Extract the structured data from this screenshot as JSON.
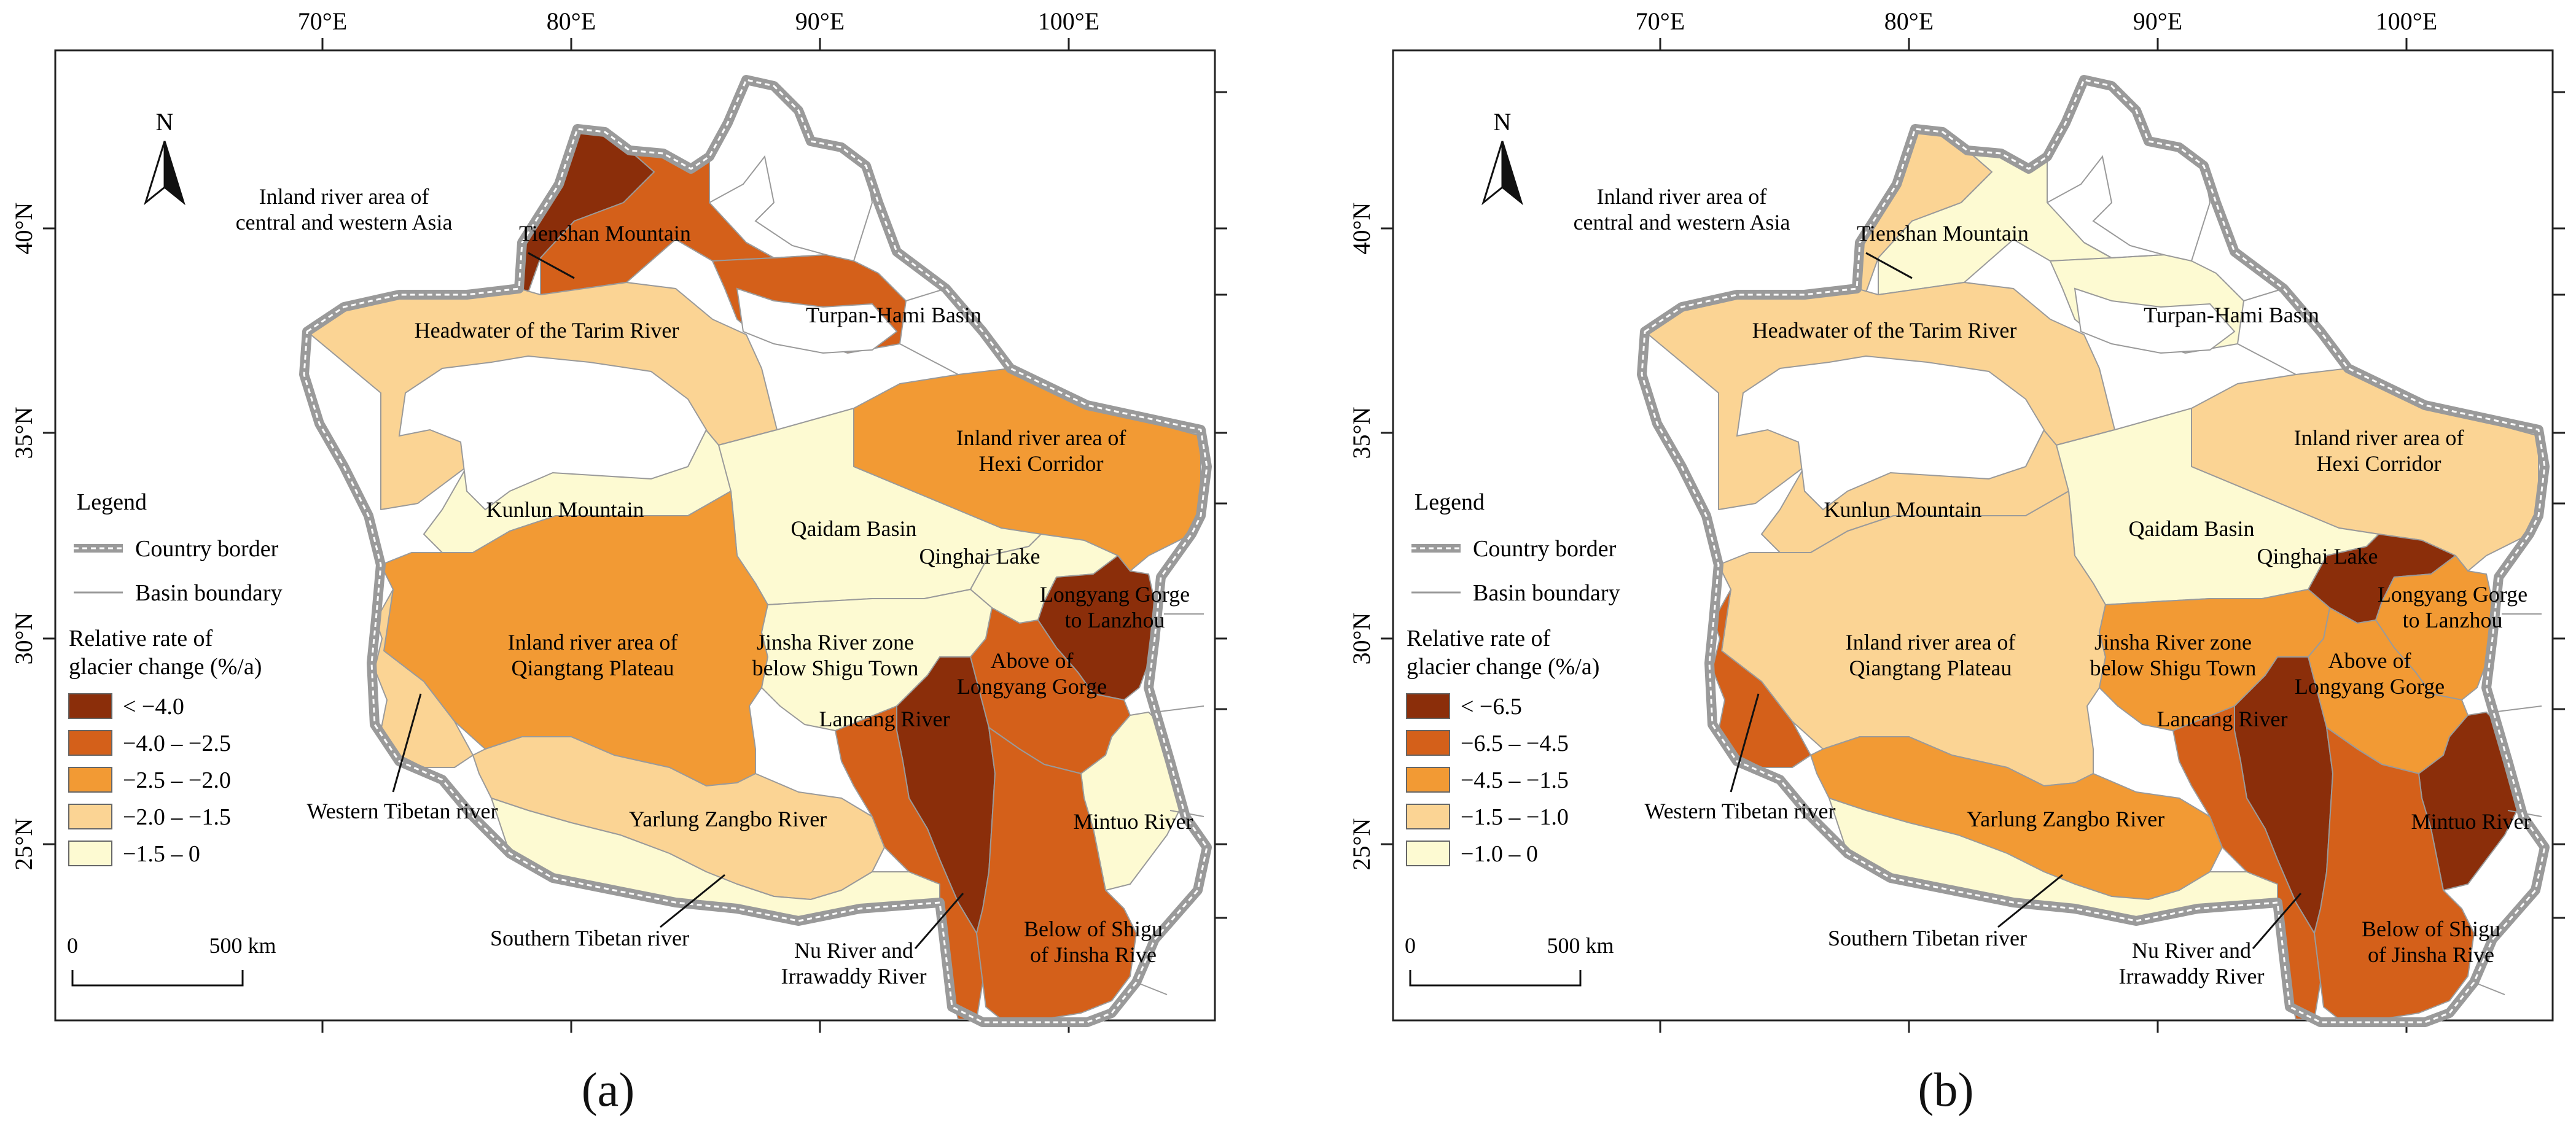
{
  "axes": {
    "lon_ticks": [
      "70°E",
      "80°E",
      "90°E",
      "100°E"
    ],
    "lat_ticks": [
      "40°N",
      "35°N",
      "30°N",
      "25°N"
    ]
  },
  "north_arrow": "N",
  "scale_bar": {
    "start": "0",
    "end": "500 km"
  },
  "region_labels": {
    "inland_asia": [
      "Inland river area of",
      "central and western Asia"
    ],
    "tienshan": "Tienshan Mountain",
    "turpan": "Turpan-Hami Basin",
    "tarim": "Headwater of the Tarim River",
    "hexi": [
      "Inland river area of",
      "Hexi Corridor"
    ],
    "kunlun": "Kunlun Mountain",
    "qaidam": "Qaidam Basin",
    "qinghai": "Qinghai Lake",
    "longyang_lanzhou": [
      "Longyang Gorge",
      "to Lanzhou"
    ],
    "qiangtang": [
      "Inland river area of",
      "Qiangtang Plateau"
    ],
    "jinsha_below": [
      "Jinsha River zone",
      "below Shigu Town"
    ],
    "above_longyang": [
      "Above of",
      "Longyang Gorge"
    ],
    "lancang": "Lancang River",
    "western_tibetan": "Western Tibetan river",
    "yarlung": "Yarlung Zangbo River",
    "mintuo": "Mintuo River",
    "southern_tibetan": "Southern Tibetan river",
    "nu": [
      "Nu River and",
      "Irrawaddy River"
    ],
    "shigu": [
      "Below of Shigu",
      "of Jinsha Rive"
    ]
  },
  "legend": {
    "title": "Legend",
    "country_border": "Country border",
    "basin_boundary": "Basin boundary",
    "rate_title": [
      "Relative rate of",
      "glacier change (%/a)"
    ]
  },
  "palette": [
    "#8b2e0a",
    "#d4601a",
    "#f29a34",
    "#fbd494",
    "#fdfad2"
  ],
  "palette_names": [
    "dark-brown",
    "dark-orange",
    "orange",
    "light-orange",
    "pale-yellow"
  ],
  "panels": [
    {
      "label": "(a)",
      "classes": [
        "< −4.0",
        "−4.0 – −2.5",
        "−2.5 – −2.0",
        "−2.0 – −1.5",
        "−1.5 – 0"
      ],
      "region_class": {
        "inland_asia": 0,
        "tienshan": 1,
        "turpan": 1,
        "tarim": 3,
        "hexi": 2,
        "kunlun": 4,
        "qaidam": 4,
        "qinghai": 4,
        "longyang_lanzhou": 0,
        "qiangtang": 2,
        "jinsha_below": 4,
        "above_longyang": 1,
        "lancang": 0,
        "western_tibetan": 3,
        "yarlung": 3,
        "mintuo": 4,
        "southern_tibetan": 4,
        "nu": 1,
        "shigu": 1
      }
    },
    {
      "label": "(b)",
      "classes": [
        "< −6.5",
        "−6.5 – −4.5",
        "−4.5 – −1.5",
        "−1.5 – −1.0",
        "−1.0 – 0"
      ],
      "region_class": {
        "inland_asia": 3,
        "tienshan": 4,
        "turpan": 4,
        "tarim": 3,
        "hexi": 3,
        "kunlun": 3,
        "qaidam": 4,
        "qinghai": 0,
        "longyang_lanzhou": 2,
        "qiangtang": 3,
        "jinsha_below": 2,
        "above_longyang": 2,
        "lancang": 0,
        "western_tibetan": 1,
        "yarlung": 2,
        "mintuo": 0,
        "southern_tibetan": 4,
        "nu": 1,
        "shigu": 1
      }
    }
  ]
}
